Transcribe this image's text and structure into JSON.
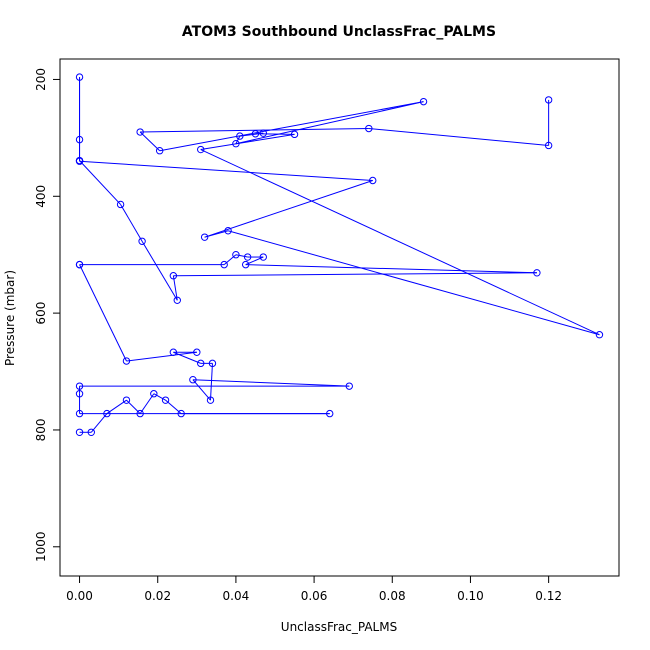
{
  "chart_data": {
    "type": "line",
    "title": "ATOM3 Southbound UnclassFrac_PALMS",
    "xlabel": "UnclassFrac_PALMS",
    "ylabel": "Pressure (mbar)",
    "xlim": [
      -0.005,
      0.138
    ],
    "ylim": [
      1050,
      165
    ],
    "y_reversed": true,
    "grid": false,
    "x_ticks": [
      0.0,
      0.02,
      0.04,
      0.06,
      0.08,
      0.1,
      0.12
    ],
    "x_tick_labels": [
      "0.00",
      "0.02",
      "0.04",
      "0.06",
      "0.08",
      "0.10",
      "0.12"
    ],
    "y_ticks": [
      200,
      400,
      600,
      800,
      1000
    ],
    "y_tick_labels": [
      "200",
      "400",
      "600",
      "800",
      "1000"
    ],
    "color": "#0000ff",
    "series": [
      {
        "points": [
          [
            0.0,
            804
          ],
          [
            0.003,
            804
          ],
          [
            0.007,
            772
          ],
          [
            0.012,
            749
          ],
          [
            0.0155,
            772
          ],
          [
            0.019,
            738
          ],
          [
            0.022,
            749
          ],
          [
            0.026,
            772
          ],
          [
            0.064,
            772
          ],
          [
            0.0,
            772
          ],
          [
            0.0,
            738
          ],
          [
            0.0,
            725
          ],
          [
            0.069,
            725
          ],
          [
            0.029,
            714
          ],
          [
            0.0335,
            749
          ],
          [
            0.034,
            686
          ],
          [
            0.031,
            686
          ],
          [
            0.024,
            667
          ],
          [
            0.03,
            667
          ],
          [
            0.012,
            682
          ],
          [
            0.0,
            517
          ],
          [
            0.0,
            517
          ],
          [
            0.037,
            517
          ],
          [
            0.04,
            500
          ],
          [
            0.043,
            504
          ],
          [
            0.047,
            504
          ],
          [
            0.0425,
            517
          ],
          [
            0.117,
            531
          ],
          [
            0.024,
            536
          ],
          [
            0.025,
            578
          ],
          [
            0.016,
            477
          ],
          [
            0.0105,
            414
          ],
          [
            0.0,
            339
          ],
          [
            0.0,
            339
          ],
          [
            0.0,
            303
          ],
          [
            0.0,
            196
          ],
          [
            0.0,
            340
          ],
          [
            0.075,
            373
          ],
          [
            0.032,
            470
          ],
          [
            0.038,
            459
          ],
          [
            0.133,
            637
          ],
          [
            0.031,
            320
          ],
          [
            0.055,
            294
          ],
          [
            0.045,
            293
          ],
          [
            0.047,
            292
          ],
          [
            0.041,
            297
          ],
          [
            0.04,
            310
          ],
          [
            0.088,
            238
          ],
          [
            0.0205,
            322
          ],
          [
            0.0155,
            290
          ],
          [
            0.074,
            284
          ],
          [
            0.12,
            313
          ],
          [
            0.12,
            235
          ]
        ]
      }
    ]
  }
}
